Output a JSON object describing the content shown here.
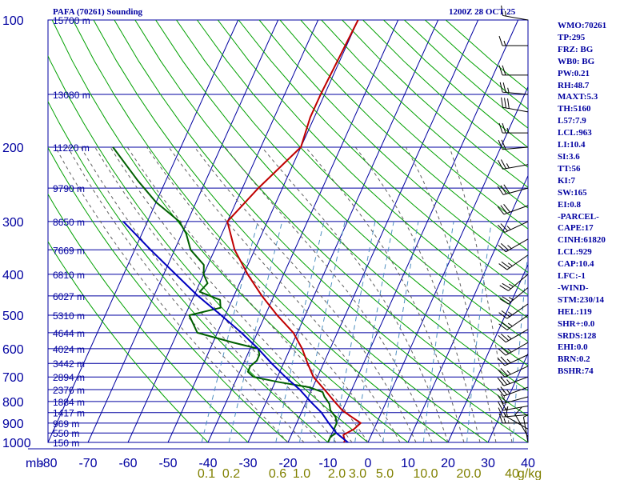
{
  "chart_data": {
    "type": "line",
    "title": "PAFA (70261) Sounding",
    "subtitle": "1200Z 28 OCT 25",
    "x_tick_labels": [
      "-80",
      "-70",
      "-60",
      "-50",
      "-40",
      "-30",
      "-20",
      "-10",
      "0",
      "10",
      "20",
      "30",
      "40"
    ],
    "pressure_units_label": "mb",
    "pressure_ticks": [
      "100",
      "200",
      "300",
      "400",
      "500",
      "600",
      "700",
      "800",
      "900",
      "1000"
    ],
    "height_labels": [
      {
        "p": 100,
        "label": "15700 m"
      },
      {
        "p": 150,
        "label": "13080 m"
      },
      {
        "p": 200,
        "label": "11220 m"
      },
      {
        "p": 250,
        "label": "9790 m"
      },
      {
        "p": 300,
        "label": "8650 m"
      },
      {
        "p": 350,
        "label": "7669 m"
      },
      {
        "p": 400,
        "label": "6810 m"
      },
      {
        "p": 450,
        "label": "6027 m"
      },
      {
        "p": 500,
        "label": "5310 m"
      },
      {
        "p": 550,
        "label": "4644 m"
      },
      {
        "p": 600,
        "label": "4024 m"
      },
      {
        "p": 650,
        "label": "3442 m"
      },
      {
        "p": 700,
        "label": "2894 m"
      },
      {
        "p": 750,
        "label": "2376 m"
      },
      {
        "p": 800,
        "label": "1884 m"
      },
      {
        "p": 850,
        "label": "1417 m"
      },
      {
        "p": 900,
        "label": "969 m"
      },
      {
        "p": 950,
        "label": "550 m"
      },
      {
        "p": 1000,
        "label": "150 m"
      }
    ],
    "mixing_ratio_labels": [
      "0.1",
      "0.2",
      "0.6",
      "1.0",
      "2.0",
      "3.0",
      "5.0",
      "10.0",
      "20.0",
      "40",
      "g/kg"
    ],
    "series": [
      {
        "color": "#c00000",
        "points": [
          [
            1000,
            -6
          ],
          [
            990,
            -6
          ],
          [
            960,
            -7
          ],
          [
            930,
            -5
          ],
          [
            900,
            -4
          ],
          [
            870,
            -7
          ],
          [
            840,
            -10
          ],
          [
            800,
            -13
          ],
          [
            760,
            -16
          ],
          [
            700,
            -21
          ],
          [
            650,
            -24
          ],
          [
            600,
            -27
          ],
          [
            550,
            -31
          ],
          [
            500,
            -37
          ],
          [
            450,
            -43
          ],
          [
            400,
            -49
          ],
          [
            350,
            -55
          ],
          [
            300,
            -60
          ],
          [
            250,
            -56
          ],
          [
            200,
            -50
          ],
          [
            170,
            -51
          ],
          [
            150,
            -51
          ],
          [
            100,
            -50
          ]
        ]
      },
      {
        "color": "#006000",
        "points": [
          [
            1000,
            -10
          ],
          [
            990,
            -10
          ],
          [
            970,
            -10
          ],
          [
            950,
            -9
          ],
          [
            930,
            -10
          ],
          [
            900,
            -10
          ],
          [
            870,
            -11
          ],
          [
            840,
            -13
          ],
          [
            810,
            -14
          ],
          [
            780,
            -16
          ],
          [
            760,
            -17
          ],
          [
            740,
            -21
          ],
          [
            720,
            -29
          ],
          [
            700,
            -36
          ],
          [
            680,
            -38
          ],
          [
            660,
            -38
          ],
          [
            640,
            -37
          ],
          [
            620,
            -37
          ],
          [
            600,
            -38
          ],
          [
            580,
            -45
          ],
          [
            550,
            -55
          ],
          [
            500,
            -59
          ],
          [
            480,
            -52
          ],
          [
            460,
            -53
          ],
          [
            440,
            -59
          ],
          [
            420,
            -58
          ],
          [
            400,
            -60
          ],
          [
            380,
            -61
          ],
          [
            350,
            -66
          ],
          [
            320,
            -69
          ],
          [
            300,
            -72
          ],
          [
            270,
            -80
          ],
          [
            240,
            -87
          ],
          [
            200,
            -97
          ]
        ]
      },
      {
        "color": "#0000c0",
        "points": [
          [
            1000,
            -5
          ],
          [
            950,
            -9
          ],
          [
            900,
            -12
          ],
          [
            850,
            -15
          ],
          [
            800,
            -19
          ],
          [
            750,
            -23
          ],
          [
            700,
            -28
          ],
          [
            650,
            -33
          ],
          [
            600,
            -38
          ],
          [
            550,
            -44
          ],
          [
            500,
            -51
          ],
          [
            450,
            -59
          ],
          [
            400,
            -67
          ],
          [
            350,
            -76
          ],
          [
            300,
            -86
          ]
        ]
      }
    ],
    "params": [
      "WMO:70261",
      "TP:295",
      "FRZ: BG",
      "WB0: BG",
      "PW:0.21",
      "RH:48.7",
      "MAXT:5.3",
      "TH:5160",
      "L57:7.9",
      "LCL:963",
      "LI:10.4",
      "SI:3.6",
      "TT:56",
      "KI:7",
      "SW:165",
      "EI:0.8",
      "-PARCEL-",
      "CAPE:17",
      "CINH:61820",
      "LCL:929",
      "CAP:10.4",
      "LFC:-1",
      "-WIND-",
      "STM:230/14",
      "HEL:119",
      "SHR+:0.0",
      "SRDS:128",
      "EHI:0.0",
      "BRN:0.2",
      "BSHR:74"
    ],
    "wind_barbs": [
      {
        "p": 100,
        "dir": 280,
        "spd": 15
      },
      {
        "p": 115,
        "dir": 270,
        "spd": 15
      },
      {
        "p": 135,
        "dir": 270,
        "spd": 20
      },
      {
        "p": 150,
        "dir": 275,
        "spd": 25
      },
      {
        "p": 165,
        "dir": 280,
        "spd": 30
      },
      {
        "p": 185,
        "dir": 270,
        "spd": 25
      },
      {
        "p": 200,
        "dir": 265,
        "spd": 20
      },
      {
        "p": 220,
        "dir": 260,
        "spd": 25
      },
      {
        "p": 250,
        "dir": 255,
        "spd": 30
      },
      {
        "p": 275,
        "dir": 250,
        "spd": 30
      },
      {
        "p": 300,
        "dir": 245,
        "spd": 25
      },
      {
        "p": 330,
        "dir": 240,
        "spd": 25
      },
      {
        "p": 360,
        "dir": 235,
        "spd": 25
      },
      {
        "p": 400,
        "dir": 230,
        "spd": 25
      },
      {
        "p": 430,
        "dir": 230,
        "spd": 25
      },
      {
        "p": 470,
        "dir": 235,
        "spd": 25
      },
      {
        "p": 500,
        "dir": 235,
        "spd": 25
      },
      {
        "p": 540,
        "dir": 240,
        "spd": 25
      },
      {
        "p": 580,
        "dir": 240,
        "spd": 25
      },
      {
        "p": 620,
        "dir": 245,
        "spd": 25
      },
      {
        "p": 660,
        "dir": 245,
        "spd": 25
      },
      {
        "p": 700,
        "dir": 250,
        "spd": 25
      },
      {
        "p": 740,
        "dir": 250,
        "spd": 25
      },
      {
        "p": 780,
        "dir": 255,
        "spd": 20
      },
      {
        "p": 820,
        "dir": 260,
        "spd": 20
      },
      {
        "p": 860,
        "dir": 265,
        "spd": 15
      },
      {
        "p": 900,
        "dir": 270,
        "spd": 15
      },
      {
        "p": 930,
        "dir": 300,
        "spd": 10
      },
      {
        "p": 970,
        "dir": 330,
        "spd": 10
      },
      {
        "p": 1000,
        "dir": 350,
        "spd": 5
      }
    ],
    "colors": {
      "frame": "#0000a0",
      "isobar": "#0000a0",
      "isotherm": "#0000a0",
      "dry_adiabat": "#00a000",
      "moist_adiabat": "#606060",
      "mixing_ratio": "#5090c0",
      "mix_label": "#808000",
      "barb": "#000000"
    }
  }
}
